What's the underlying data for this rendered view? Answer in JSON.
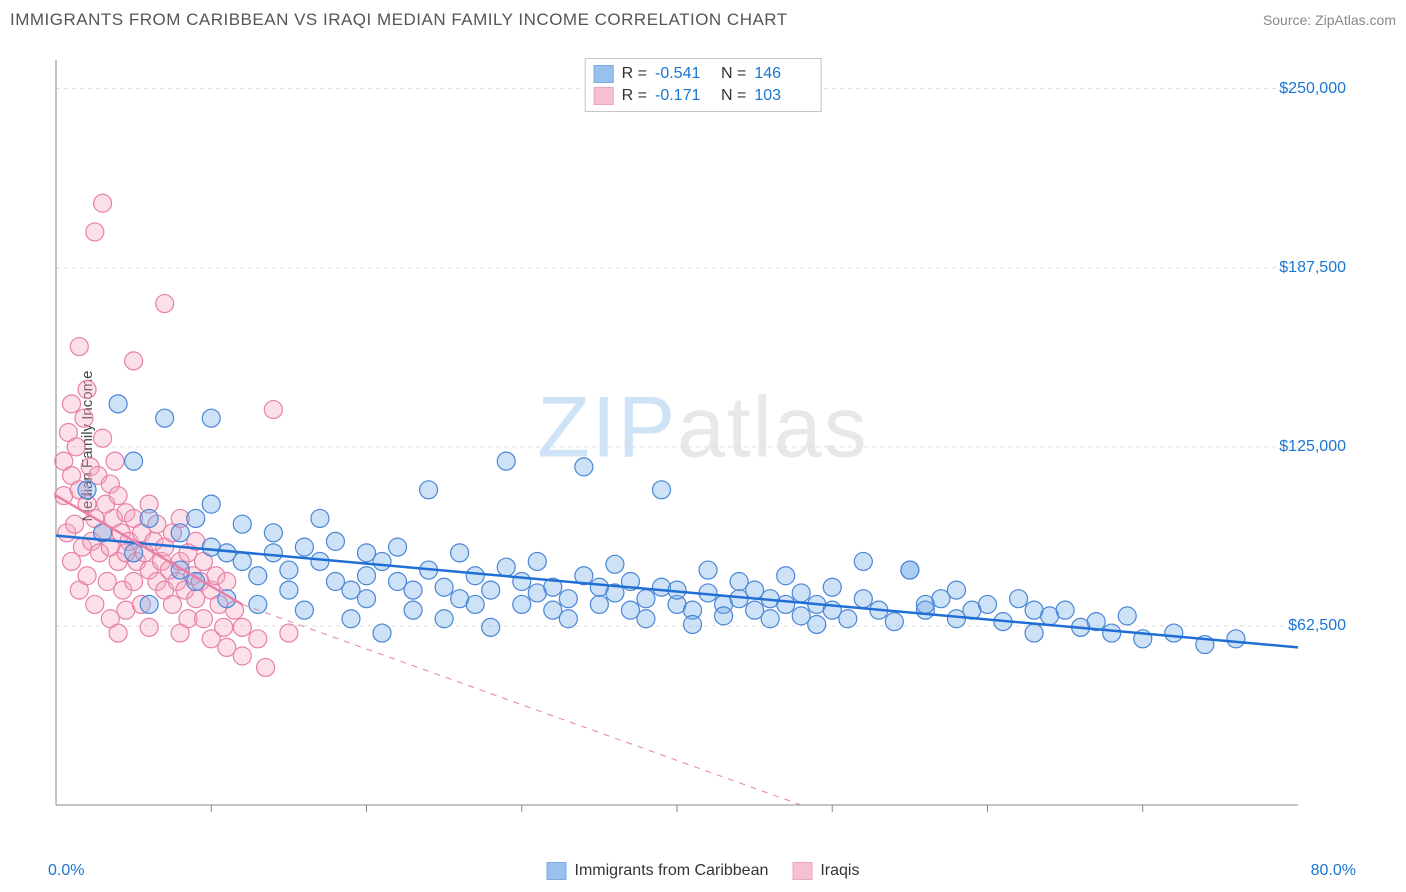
{
  "title": "IMMIGRANTS FROM CARIBBEAN VS IRAQI MEDIAN FAMILY INCOME CORRELATION CHART",
  "source_label": "Source: ZipAtlas.com",
  "ylabel": "Median Family Income",
  "chart": {
    "type": "scatter",
    "background_color": "#ffffff",
    "grid_color": "#dddddd",
    "grid_dash": "4,4",
    "axis_color": "#888888",
    "title_fontsize": 17,
    "label_fontsize": 15,
    "tick_fontsize": 16,
    "tick_color": "#1976d2",
    "xlim": [
      0,
      80
    ],
    "ylim": [
      0,
      260000
    ],
    "ytick_values": [
      62500,
      125000,
      187500,
      250000
    ],
    "ytick_labels": [
      "$62,500",
      "$125,000",
      "$187,500",
      "$250,000"
    ],
    "xtick_minor_step": 10,
    "xaxis_min_label": "0.0%",
    "xaxis_max_label": "80.0%",
    "marker_radius": 9,
    "marker_stroke_width": 1.2,
    "marker_fill_opacity": 0.35,
    "trend_solid_width": 2.5,
    "trend_dash_width": 1,
    "trend_dash": "6,6",
    "series": [
      {
        "name": "Immigrants from Caribbean",
        "color": "#6fa8e8",
        "stroke": "#4a86d6",
        "trend_color": "#1f6fd4",
        "R": "-0.541",
        "N": "146",
        "trend_start": [
          0,
          94000
        ],
        "trend_end": [
          80,
          55000
        ],
        "points": [
          [
            2,
            110000
          ],
          [
            3,
            95000
          ],
          [
            4,
            140000
          ],
          [
            5,
            88000
          ],
          [
            5,
            120000
          ],
          [
            6,
            100000
          ],
          [
            6,
            70000
          ],
          [
            7,
            135000
          ],
          [
            8,
            95000
          ],
          [
            8,
            82000
          ],
          [
            9,
            100000
          ],
          [
            9,
            78000
          ],
          [
            10,
            90000
          ],
          [
            10,
            105000
          ],
          [
            10,
            135000
          ],
          [
            11,
            88000
          ],
          [
            11,
            72000
          ],
          [
            12,
            85000
          ],
          [
            12,
            98000
          ],
          [
            13,
            80000
          ],
          [
            13,
            70000
          ],
          [
            14,
            95000
          ],
          [
            14,
            88000
          ],
          [
            15,
            82000
          ],
          [
            15,
            75000
          ],
          [
            16,
            90000
          ],
          [
            16,
            68000
          ],
          [
            17,
            85000
          ],
          [
            17,
            100000
          ],
          [
            18,
            78000
          ],
          [
            18,
            92000
          ],
          [
            19,
            75000
          ],
          [
            19,
            65000
          ],
          [
            20,
            88000
          ],
          [
            20,
            80000
          ],
          [
            20,
            72000
          ],
          [
            21,
            85000
          ],
          [
            21,
            60000
          ],
          [
            22,
            78000
          ],
          [
            22,
            90000
          ],
          [
            23,
            75000
          ],
          [
            23,
            68000
          ],
          [
            24,
            82000
          ],
          [
            24,
            110000
          ],
          [
            25,
            76000
          ],
          [
            25,
            65000
          ],
          [
            26,
            72000
          ],
          [
            26,
            88000
          ],
          [
            27,
            70000
          ],
          [
            27,
            80000
          ],
          [
            28,
            75000
          ],
          [
            28,
            62000
          ],
          [
            29,
            83000
          ],
          [
            29,
            120000
          ],
          [
            30,
            70000
          ],
          [
            30,
            78000
          ],
          [
            31,
            74000
          ],
          [
            31,
            85000
          ],
          [
            32,
            68000
          ],
          [
            32,
            76000
          ],
          [
            33,
            72000
          ],
          [
            33,
            65000
          ],
          [
            34,
            80000
          ],
          [
            34,
            118000
          ],
          [
            35,
            70000
          ],
          [
            35,
            76000
          ],
          [
            36,
            74000
          ],
          [
            36,
            84000
          ],
          [
            37,
            68000
          ],
          [
            37,
            78000
          ],
          [
            38,
            72000
          ],
          [
            38,
            65000
          ],
          [
            39,
            76000
          ],
          [
            39,
            110000
          ],
          [
            40,
            70000
          ],
          [
            40,
            75000
          ],
          [
            41,
            68000
          ],
          [
            41,
            63000
          ],
          [
            42,
            74000
          ],
          [
            42,
            82000
          ],
          [
            43,
            70000
          ],
          [
            43,
            66000
          ],
          [
            44,
            72000
          ],
          [
            44,
            78000
          ],
          [
            45,
            68000
          ],
          [
            45,
            75000
          ],
          [
            46,
            65000
          ],
          [
            46,
            72000
          ],
          [
            47,
            70000
          ],
          [
            47,
            80000
          ],
          [
            48,
            66000
          ],
          [
            48,
            74000
          ],
          [
            49,
            70000
          ],
          [
            49,
            63000
          ],
          [
            50,
            68000
          ],
          [
            50,
            76000
          ],
          [
            51,
            65000
          ],
          [
            52,
            72000
          ],
          [
            52,
            85000
          ],
          [
            53,
            68000
          ],
          [
            54,
            64000
          ],
          [
            55,
            82000
          ],
          [
            55,
            82000
          ],
          [
            56,
            68000
          ],
          [
            56,
            70000
          ],
          [
            57,
            72000
          ],
          [
            58,
            65000
          ],
          [
            58,
            75000
          ],
          [
            59,
            68000
          ],
          [
            60,
            70000
          ],
          [
            61,
            64000
          ],
          [
            62,
            72000
          ],
          [
            63,
            68000
          ],
          [
            63,
            60000
          ],
          [
            64,
            66000
          ],
          [
            65,
            68000
          ],
          [
            66,
            62000
          ],
          [
            67,
            64000
          ],
          [
            68,
            60000
          ],
          [
            69,
            66000
          ],
          [
            70,
            58000
          ],
          [
            72,
            60000
          ],
          [
            74,
            56000
          ],
          [
            76,
            58000
          ]
        ]
      },
      {
        "name": "Iraqis",
        "color": "#f4a6c0",
        "stroke": "#e880a8",
        "trend_color": "#e880a8",
        "R": "-0.171",
        "N": "103",
        "trend_start": [
          0,
          108000
        ],
        "trend_end": [
          12,
          70000
        ],
        "trend_dash_start": [
          12,
          70000
        ],
        "trend_dash_end": [
          48,
          0
        ],
        "points": [
          [
            0.5,
            108000
          ],
          [
            0.5,
            120000
          ],
          [
            0.7,
            95000
          ],
          [
            0.8,
            130000
          ],
          [
            1,
            140000
          ],
          [
            1,
            85000
          ],
          [
            1,
            115000
          ],
          [
            1.2,
            98000
          ],
          [
            1.3,
            125000
          ],
          [
            1.5,
            110000
          ],
          [
            1.5,
            160000
          ],
          [
            1.5,
            75000
          ],
          [
            1.7,
            90000
          ],
          [
            1.8,
            135000
          ],
          [
            2,
            105000
          ],
          [
            2,
            80000
          ],
          [
            2,
            145000
          ],
          [
            2.2,
            118000
          ],
          [
            2.3,
            92000
          ],
          [
            2.5,
            200000
          ],
          [
            2.5,
            100000
          ],
          [
            2.5,
            70000
          ],
          [
            2.7,
            115000
          ],
          [
            2.8,
            88000
          ],
          [
            3,
            210000
          ],
          [
            3,
            95000
          ],
          [
            3,
            128000
          ],
          [
            3.2,
            105000
          ],
          [
            3.3,
            78000
          ],
          [
            3.5,
            112000
          ],
          [
            3.5,
            90000
          ],
          [
            3.5,
            65000
          ],
          [
            3.7,
            100000
          ],
          [
            3.8,
            120000
          ],
          [
            4,
            85000
          ],
          [
            4,
            108000
          ],
          [
            4,
            60000
          ],
          [
            4.2,
            95000
          ],
          [
            4.3,
            75000
          ],
          [
            4.5,
            102000
          ],
          [
            4.5,
            88000
          ],
          [
            4.5,
            68000
          ],
          [
            4.7,
            92000
          ],
          [
            5,
            155000
          ],
          [
            5,
            78000
          ],
          [
            5,
            100000
          ],
          [
            5.2,
            85000
          ],
          [
            5.5,
            95000
          ],
          [
            5.5,
            70000
          ],
          [
            5.7,
            88000
          ],
          [
            6,
            82000
          ],
          [
            6,
            105000
          ],
          [
            6,
            62000
          ],
          [
            6.3,
            92000
          ],
          [
            6.5,
            78000
          ],
          [
            6.5,
            98000
          ],
          [
            6.8,
            85000
          ],
          [
            7,
            75000
          ],
          [
            7,
            175000
          ],
          [
            7,
            90000
          ],
          [
            7.3,
            82000
          ],
          [
            7.5,
            70000
          ],
          [
            7.5,
            95000
          ],
          [
            7.8,
            78000
          ],
          [
            8,
            85000
          ],
          [
            8,
            60000
          ],
          [
            8,
            100000
          ],
          [
            8.3,
            75000
          ],
          [
            8.5,
            88000
          ],
          [
            8.5,
            65000
          ],
          [
            8.8,
            80000
          ],
          [
            9,
            72000
          ],
          [
            9,
            92000
          ],
          [
            9.3,
            78000
          ],
          [
            9.5,
            65000
          ],
          [
            9.5,
            85000
          ],
          [
            10,
            75000
          ],
          [
            10,
            58000
          ],
          [
            10.3,
            80000
          ],
          [
            10.5,
            70000
          ],
          [
            10.8,
            62000
          ],
          [
            11,
            78000
          ],
          [
            11,
            55000
          ],
          [
            11.5,
            68000
          ],
          [
            12,
            62000
          ],
          [
            12,
            52000
          ],
          [
            13,
            58000
          ],
          [
            13.5,
            48000
          ],
          [
            14,
            138000
          ],
          [
            15,
            60000
          ]
        ]
      }
    ]
  },
  "watermark": {
    "part1": "ZIP",
    "part2": "atlas"
  },
  "legend_stats_labels": {
    "R": "R =",
    "N": "N ="
  }
}
